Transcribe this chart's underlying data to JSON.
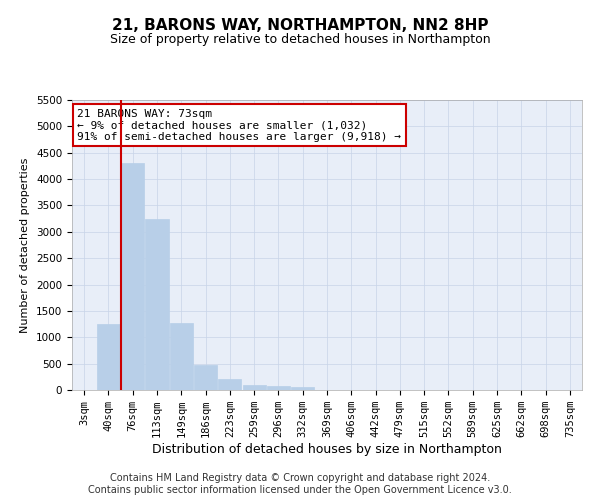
{
  "title": "21, BARONS WAY, NORTHAMPTON, NN2 8HP",
  "subtitle": "Size of property relative to detached houses in Northampton",
  "xlabel": "Distribution of detached houses by size in Northampton",
  "ylabel": "Number of detached properties",
  "categories": [
    "3sqm",
    "40sqm",
    "76sqm",
    "113sqm",
    "149sqm",
    "186sqm",
    "223sqm",
    "259sqm",
    "296sqm",
    "332sqm",
    "369sqm",
    "406sqm",
    "442sqm",
    "479sqm",
    "515sqm",
    "552sqm",
    "589sqm",
    "625sqm",
    "662sqm",
    "698sqm",
    "735sqm"
  ],
  "values": [
    0,
    1250,
    4300,
    3250,
    1280,
    480,
    200,
    100,
    80,
    60,
    0,
    0,
    0,
    0,
    0,
    0,
    0,
    0,
    0,
    0,
    0
  ],
  "bar_color": "#b8cfe8",
  "bar_edgecolor": "#b8cfe8",
  "vline_x_index": 2,
  "vline_color": "#cc0000",
  "annotation_line1": "21 BARONS WAY: 73sqm",
  "annotation_line2": "← 9% of detached houses are smaller (1,032)",
  "annotation_line3": "91% of semi-detached houses are larger (9,918) →",
  "annotation_box_color": "#ffffff",
  "annotation_box_edgecolor": "#cc0000",
  "ylim": [
    0,
    5500
  ],
  "yticks": [
    0,
    500,
    1000,
    1500,
    2000,
    2500,
    3000,
    3500,
    4000,
    4500,
    5000,
    5500
  ],
  "grid_color": "#c8d4e8",
  "background_color": "#e8eef8",
  "footer1": "Contains HM Land Registry data © Crown copyright and database right 2024.",
  "footer2": "Contains public sector information licensed under the Open Government Licence v3.0.",
  "title_fontsize": 11,
  "subtitle_fontsize": 9,
  "xlabel_fontsize": 9,
  "ylabel_fontsize": 8,
  "tick_fontsize": 7.5,
  "footer_fontsize": 7,
  "ann_fontsize": 8
}
